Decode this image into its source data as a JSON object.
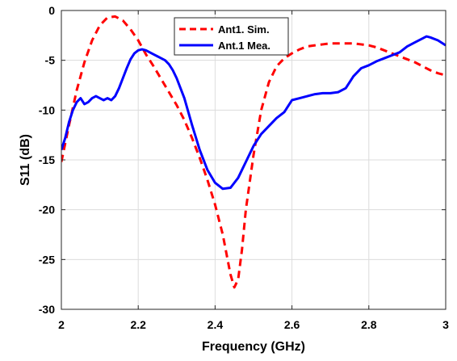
{
  "chart_data": {
    "type": "line",
    "xlabel": "Frequency (GHz)",
    "ylabel": "S11 (dB)",
    "xlim": [
      2,
      3
    ],
    "ylim": [
      -30,
      0
    ],
    "xticks": [
      2,
      2.2,
      2.4,
      2.6,
      2.8,
      3
    ],
    "xtick_labels": [
      "2",
      "2.2",
      "2.4",
      "2.6",
      "2.8",
      "3"
    ],
    "yticks": [
      0,
      -5,
      -10,
      -15,
      -20,
      -25,
      -30
    ],
    "ytick_labels": [
      "0",
      "-5",
      "-10",
      "-15",
      "-20",
      "-25",
      "-30"
    ],
    "grid": true,
    "legend_position": "top-center",
    "series": [
      {
        "name": "Ant1. Sim.",
        "color": "#ff0000",
        "style": "dashed",
        "x": [
          2.0,
          2.02,
          2.04,
          2.06,
          2.08,
          2.1,
          2.12,
          2.14,
          2.16,
          2.18,
          2.2,
          2.22,
          2.24,
          2.26,
          2.28,
          2.3,
          2.32,
          2.34,
          2.36,
          2.38,
          2.4,
          2.42,
          2.43,
          2.44,
          2.45,
          2.46,
          2.47,
          2.48,
          2.5,
          2.52,
          2.54,
          2.56,
          2.58,
          2.6,
          2.62,
          2.64,
          2.66,
          2.68,
          2.7,
          2.72,
          2.74,
          2.76,
          2.78,
          2.8,
          2.82,
          2.84,
          2.86,
          2.88,
          2.9,
          2.92,
          2.94,
          2.96,
          2.98,
          3.0
        ],
        "y": [
          -15.2,
          -11.5,
          -8.0,
          -5.2,
          -3.0,
          -1.5,
          -0.7,
          -0.6,
          -1.0,
          -1.9,
          -3.0,
          -4.4,
          -5.6,
          -6.9,
          -8.2,
          -9.5,
          -11.0,
          -12.8,
          -14.8,
          -17.0,
          -19.5,
          -22.5,
          -24.5,
          -26.5,
          -27.8,
          -27.0,
          -24.0,
          -20.0,
          -14.5,
          -10.0,
          -7.2,
          -5.6,
          -4.8,
          -4.3,
          -3.9,
          -3.6,
          -3.5,
          -3.4,
          -3.3,
          -3.3,
          -3.3,
          -3.3,
          -3.4,
          -3.5,
          -3.7,
          -4.0,
          -4.3,
          -4.6,
          -4.9,
          -5.2,
          -5.6,
          -6.0,
          -6.3,
          -6.5
        ]
      },
      {
        "name": "Ant.1 Mea.",
        "color": "#0000ff",
        "style": "solid",
        "x": [
          2.0,
          2.01,
          2.02,
          2.03,
          2.04,
          2.05,
          2.06,
          2.07,
          2.08,
          2.09,
          2.1,
          2.11,
          2.12,
          2.13,
          2.14,
          2.15,
          2.16,
          2.17,
          2.18,
          2.19,
          2.2,
          2.21,
          2.22,
          2.23,
          2.24,
          2.25,
          2.26,
          2.27,
          2.28,
          2.29,
          2.3,
          2.32,
          2.34,
          2.36,
          2.38,
          2.4,
          2.42,
          2.44,
          2.45,
          2.46,
          2.47,
          2.48,
          2.49,
          2.5,
          2.51,
          2.52,
          2.54,
          2.56,
          2.58,
          2.6,
          2.62,
          2.64,
          2.66,
          2.68,
          2.7,
          2.72,
          2.74,
          2.76,
          2.78,
          2.8,
          2.82,
          2.84,
          2.86,
          2.88,
          2.9,
          2.92,
          2.94,
          2.95,
          2.96,
          2.98,
          3.0
        ],
        "y": [
          -14.0,
          -12.8,
          -11.2,
          -10.0,
          -9.2,
          -8.8,
          -9.4,
          -9.2,
          -8.8,
          -8.6,
          -8.8,
          -9.0,
          -8.8,
          -9.0,
          -8.6,
          -7.8,
          -6.8,
          -5.8,
          -4.9,
          -4.3,
          -4.0,
          -3.9,
          -4.0,
          -4.2,
          -4.4,
          -4.6,
          -4.8,
          -5.0,
          -5.4,
          -6.0,
          -6.8,
          -8.8,
          -11.5,
          -14.0,
          -16.0,
          -17.3,
          -17.9,
          -17.8,
          -17.3,
          -16.8,
          -16.0,
          -15.2,
          -14.4,
          -13.6,
          -13.0,
          -12.4,
          -11.6,
          -10.8,
          -10.2,
          -9.0,
          -8.8,
          -8.6,
          -8.4,
          -8.3,
          -8.3,
          -8.2,
          -7.8,
          -6.6,
          -5.8,
          -5.5,
          -5.1,
          -4.8,
          -4.5,
          -4.2,
          -3.6,
          -3.2,
          -2.8,
          -2.6,
          -2.7,
          -3.0,
          -3.5
        ]
      }
    ]
  }
}
